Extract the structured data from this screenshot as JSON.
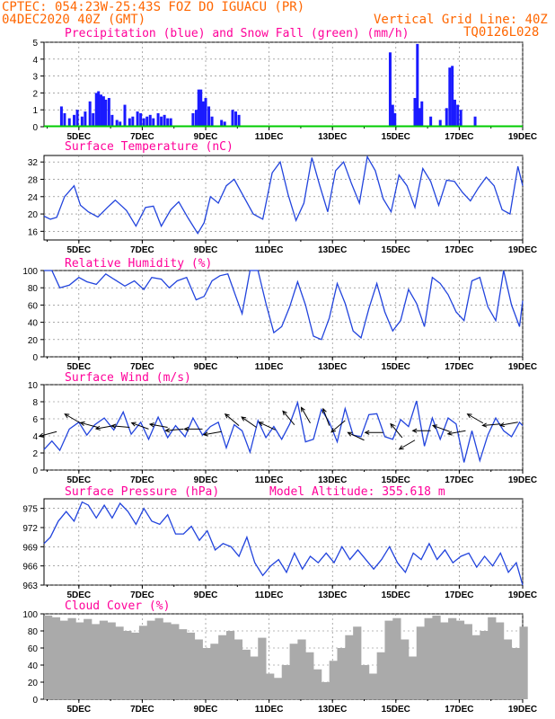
{
  "header": {
    "line1": "CPTEC:  054:23W-25:43S  FOZ DO IGUACU (PR)",
    "line2": "04DEC2020 40Z (GMT)",
    "grid_note": "Vertical Grid Line: 40Z",
    "code": "TQ0126L028"
  },
  "colors": {
    "header": "#ff6600",
    "titles": "#ff0099",
    "precip": "#1a1aff",
    "snow": "#00cc00",
    "line": "#2244dd",
    "wind_arrow": "#000000",
    "cloud": "#aaaaaa"
  },
  "x_axis": {
    "days": [
      "5DEC",
      "7DEC",
      "9DEC",
      "11DEC",
      "13DEC",
      "15DEC",
      "17DEC",
      "19DEC"
    ]
  },
  "chart_data": [
    {
      "type": "bar",
      "title": "Precipitation (blue) and Snow Fall (green) (mm/h)",
      "ylim": [
        0,
        5
      ],
      "yticks": [
        0,
        1,
        2,
        3,
        4,
        5
      ],
      "grid": true,
      "series": [
        {
          "name": "Precipitation",
          "x": [
            4.45,
            4.55,
            4.7,
            4.85,
            4.95,
            5.1,
            5.2,
            5.35,
            5.45,
            5.55,
            5.62,
            5.7,
            5.78,
            5.85,
            5.95,
            6.05,
            6.2,
            6.3,
            6.45,
            6.6,
            6.7,
            6.85,
            6.95,
            7.05,
            7.15,
            7.25,
            7.35,
            7.5,
            7.6,
            7.7,
            7.8,
            7.9,
            8.6,
            8.7,
            8.78,
            8.85,
            8.92,
            9.0,
            9.1,
            9.2,
            9.5,
            9.6,
            9.85,
            9.95,
            10.05,
            14.82,
            14.9,
            14.97,
            15.6,
            15.68,
            15.75,
            15.82,
            16.1,
            16.4,
            16.6,
            16.7,
            16.78,
            16.86,
            16.95,
            17.05,
            17.5
          ],
          "values": [
            1.2,
            0.8,
            0.5,
            0.7,
            1.0,
            0.6,
            0.9,
            1.5,
            0.8,
            2.0,
            2.1,
            1.9,
            1.8,
            1.6,
            1.7,
            0.7,
            0.4,
            0.3,
            1.3,
            0.5,
            0.6,
            0.9,
            0.8,
            0.5,
            0.6,
            0.7,
            0.5,
            0.8,
            0.6,
            0.7,
            0.5,
            0.5,
            0.8,
            1.0,
            2.2,
            2.2,
            1.5,
            1.7,
            1.2,
            0.6,
            0.4,
            0.3,
            1.0,
            0.9,
            0.7,
            4.4,
            1.3,
            0.8,
            1.7,
            4.9,
            1.1,
            1.5,
            0.6,
            0.4,
            1.1,
            3.5,
            3.6,
            1.6,
            1.3,
            1.0,
            0.6
          ]
        },
        {
          "name": "Snow Fall",
          "x": [
            16.8
          ],
          "values": [
            0.0
          ]
        }
      ]
    },
    {
      "type": "line",
      "title": "Surface Temperature (nC)",
      "ylim": [
        14,
        33.5
      ],
      "yticks": [
        16,
        20,
        24,
        28,
        32
      ],
      "grid": true,
      "series": [
        {
          "name": "Temperature",
          "x": [
            3.9,
            4.1,
            4.3,
            4.55,
            4.85,
            5.05,
            5.3,
            5.6,
            5.9,
            6.15,
            6.5,
            6.8,
            7.1,
            7.35,
            7.6,
            7.9,
            8.15,
            8.45,
            8.75,
            8.95,
            9.15,
            9.4,
            9.65,
            9.9,
            10.2,
            10.5,
            10.8,
            11.1,
            11.35,
            11.6,
            11.85,
            12.1,
            12.35,
            12.6,
            12.85,
            13.1,
            13.35,
            13.6,
            13.85,
            14.1,
            14.35,
            14.6,
            14.85,
            15.1,
            15.35,
            15.6,
            15.85,
            16.1,
            16.35,
            16.6,
            16.85,
            17.1,
            17.35,
            17.6,
            17.85,
            18.1,
            18.35,
            18.6,
            18.85,
            19.0
          ],
          "values": [
            19.5,
            18.8,
            19.2,
            24,
            26.5,
            22,
            20.5,
            19.3,
            21.5,
            23.2,
            20.8,
            17.2,
            21.5,
            21.8,
            17.2,
            21,
            22.8,
            19,
            15.5,
            18,
            24,
            22.5,
            26.5,
            28,
            24,
            20,
            18.8,
            29.5,
            32,
            24.5,
            18.5,
            22.5,
            33,
            26.5,
            20.5,
            30,
            32,
            27,
            22.5,
            33.2,
            30,
            23.5,
            20.5,
            29,
            26.5,
            21.5,
            30.5,
            27.5,
            22,
            27.8,
            27.5,
            25,
            23,
            26,
            28.5,
            26.5,
            21,
            20,
            31,
            26.5
          ]
        }
      ]
    },
    {
      "type": "line",
      "title": "Relative Humidity (%)",
      "ylim": [
        0,
        100
      ],
      "yticks": [
        0,
        20,
        40,
        60,
        80,
        100
      ],
      "grid": true,
      "series": [
        {
          "name": "Humidity",
          "x": [
            3.9,
            4.15,
            4.4,
            4.7,
            5.0,
            5.25,
            5.55,
            5.85,
            6.15,
            6.45,
            6.75,
            7.05,
            7.3,
            7.6,
            7.85,
            8.1,
            8.4,
            8.7,
            8.95,
            9.2,
            9.45,
            9.7,
            9.95,
            10.15,
            10.4,
            10.65,
            10.9,
            11.15,
            11.4,
            11.65,
            11.9,
            12.15,
            12.4,
            12.65,
            12.9,
            13.15,
            13.4,
            13.65,
            13.9,
            14.15,
            14.4,
            14.65,
            14.9,
            15.15,
            15.4,
            15.65,
            15.9,
            16.15,
            16.4,
            16.65,
            16.9,
            17.15,
            17.4,
            17.65,
            17.9,
            18.15,
            18.4,
            18.65,
            18.9,
            19.0
          ],
          "values": [
            100,
            100,
            80,
            83,
            92,
            87,
            84,
            96,
            89,
            82,
            88,
            78,
            92,
            90,
            80,
            88,
            92,
            66,
            70,
            88,
            94,
            96,
            70,
            50,
            100,
            100,
            62,
            28,
            35,
            58,
            87,
            60,
            24,
            20,
            45,
            85,
            62,
            30,
            22,
            56,
            85,
            52,
            30,
            42,
            78,
            62,
            35,
            92,
            85,
            72,
            52,
            42,
            88,
            92,
            58,
            42,
            100,
            60,
            35,
            65
          ]
        }
      ]
    },
    {
      "type": "line",
      "title": "Surface Wind (m/s)",
      "ylim": [
        0,
        10
      ],
      "yticks": [
        0,
        2,
        4,
        6,
        8,
        10
      ],
      "grid": true,
      "series": [
        {
          "name": "Wind speed",
          "x": [
            3.9,
            4.15,
            4.4,
            4.7,
            5.0,
            5.25,
            5.5,
            5.8,
            6.1,
            6.4,
            6.65,
            6.95,
            7.2,
            7.5,
            7.8,
            8.05,
            8.35,
            8.6,
            8.9,
            9.15,
            9.4,
            9.65,
            9.9,
            10.15,
            10.4,
            10.65,
            10.9,
            11.15,
            11.4,
            11.65,
            11.9,
            12.15,
            12.4,
            12.65,
            12.9,
            13.15,
            13.4,
            13.65,
            13.9,
            14.15,
            14.4,
            14.65,
            14.9,
            15.15,
            15.4,
            15.65,
            15.9,
            16.15,
            16.4,
            16.65,
            16.9,
            17.15,
            17.4,
            17.65,
            17.9,
            18.15,
            18.4,
            18.65,
            18.9,
            19.0
          ],
          "values": [
            2.4,
            3.4,
            2.3,
            4.8,
            5.6,
            4.1,
            5.3,
            6.1,
            4.7,
            6.8,
            4.2,
            5.6,
            3.6,
            6.2,
            3.8,
            5.2,
            3.9,
            6.1,
            4.1,
            5.1,
            5.6,
            2.6,
            5.3,
            4.6,
            2.1,
            5.8,
            3.8,
            5.1,
            3.6,
            5.4,
            7.9,
            3.3,
            3.6,
            7.1,
            5.6,
            3.3,
            7.2,
            4.1,
            3.9,
            6.5,
            6.6,
            3.9,
            3.6,
            5.9,
            5.1,
            8.1,
            2.8,
            6.1,
            3.6,
            6.1,
            5.4,
            0.9,
            4.6,
            1.1,
            4.1,
            6.1,
            4.6,
            3.9,
            5.6,
            5.2
          ]
        }
      ],
      "arrows": [
        {
          "x": 4.3,
          "y": 4.5,
          "dir": 15
        },
        {
          "x": 5.05,
          "y": 5.5,
          "dir": -30
        },
        {
          "x": 5.6,
          "y": 5.0,
          "dir": -15
        },
        {
          "x": 6.1,
          "y": 5.2,
          "dir": 10
        },
        {
          "x": 6.6,
          "y": 5.0,
          "dir": -5
        },
        {
          "x": 7.2,
          "y": 4.8,
          "dir": -20
        },
        {
          "x": 7.8,
          "y": 5.0,
          "dir": -10
        },
        {
          "x": 8.3,
          "y": 4.8,
          "dir": 5
        },
        {
          "x": 8.9,
          "y": 4.8,
          "dir": 0
        },
        {
          "x": 9.5,
          "y": 4.5,
          "dir": 10
        },
        {
          "x": 10.05,
          "y": 5.2,
          "dir": -40
        },
        {
          "x": 10.6,
          "y": 5.0,
          "dir": -35
        },
        {
          "x": 11.2,
          "y": 4.7,
          "dir": -25
        },
        {
          "x": 11.8,
          "y": 5.3,
          "dir": -50
        },
        {
          "x": 12.3,
          "y": 5.5,
          "dir": -60
        },
        {
          "x": 12.9,
          "y": 5.2,
          "dir": -70
        },
        {
          "x": 13.4,
          "y": 5.8,
          "dir": 40
        },
        {
          "x": 14.0,
          "y": 3.5,
          "dir": -25
        },
        {
          "x": 14.6,
          "y": 4.4,
          "dir": 0
        },
        {
          "x": 15.2,
          "y": 3.8,
          "dir": -50
        },
        {
          "x": 15.6,
          "y": 3.5,
          "dir": 30
        },
        {
          "x": 16.1,
          "y": 4.6,
          "dir": 0
        },
        {
          "x": 16.7,
          "y": 4.5,
          "dir": -20
        },
        {
          "x": 17.2,
          "y": 4.6,
          "dir": 10
        },
        {
          "x": 17.75,
          "y": 5.5,
          "dir": -30
        },
        {
          "x": 18.3,
          "y": 5.4,
          "dir": 5
        },
        {
          "x": 18.85,
          "y": 5.6,
          "dir": 10
        }
      ]
    },
    {
      "type": "line",
      "title": "Surface Pressure (hPa)",
      "annotation": "Model Altitude: 355.618 m",
      "ylim": [
        963,
        976.5
      ],
      "yticks": [
        963,
        966,
        969,
        972,
        975
      ],
      "grid": true,
      "series": [
        {
          "name": "Pressure",
          "x": [
            3.9,
            4.1,
            4.35,
            4.6,
            4.85,
            5.1,
            5.3,
            5.55,
            5.8,
            6.05,
            6.3,
            6.55,
            6.8,
            7.05,
            7.3,
            7.55,
            7.8,
            8.05,
            8.3,
            8.55,
            8.8,
            9.05,
            9.3,
            9.55,
            9.8,
            10.05,
            10.3,
            10.55,
            10.8,
            11.05,
            11.3,
            11.55,
            11.8,
            12.05,
            12.3,
            12.55,
            12.8,
            13.05,
            13.3,
            13.55,
            13.8,
            14.05,
            14.3,
            14.55,
            14.8,
            15.05,
            15.3,
            15.55,
            15.8,
            16.05,
            16.3,
            16.55,
            16.8,
            17.05,
            17.3,
            17.55,
            17.8,
            18.05,
            18.3,
            18.55,
            18.8,
            19.0
          ],
          "values": [
            969.5,
            970.5,
            973,
            974.5,
            973,
            976,
            975.5,
            973.5,
            975.5,
            973.5,
            975.8,
            974.5,
            972.5,
            975,
            973,
            972.5,
            974,
            971,
            971,
            972.2,
            970,
            971.5,
            968.5,
            969.5,
            969,
            967.5,
            970.5,
            966.5,
            964.5,
            966,
            967,
            965,
            968,
            965.5,
            967.5,
            966.5,
            968,
            966.5,
            969,
            967,
            968.5,
            967,
            965.5,
            967,
            969,
            966.5,
            965,
            968,
            967,
            969.5,
            967,
            968.5,
            966.5,
            967.5,
            968,
            965.8,
            967.5,
            966,
            968,
            965,
            966.5,
            963
          ]
        }
      ]
    },
    {
      "type": "bar",
      "title": "Cloud Cover (%)",
      "ylim": [
        0,
        100
      ],
      "yticks": [
        0,
        20,
        40,
        60,
        80,
        100
      ],
      "grid": true,
      "series": [
        {
          "name": "Cloud cover",
          "x": [
            3.9,
            4.15,
            4.4,
            4.65,
            4.9,
            5.15,
            5.4,
            5.65,
            5.9,
            6.15,
            6.4,
            6.65,
            6.9,
            7.15,
            7.4,
            7.65,
            7.9,
            8.15,
            8.4,
            8.65,
            8.9,
            9.15,
            9.4,
            9.65,
            9.9,
            10.15,
            10.4,
            10.65,
            10.9,
            11.15,
            11.4,
            11.65,
            11.9,
            12.15,
            12.4,
            12.65,
            12.9,
            13.15,
            13.4,
            13.65,
            13.9,
            14.15,
            14.4,
            14.65,
            14.9,
            15.15,
            15.4,
            15.65,
            15.9,
            16.15,
            16.4,
            16.65,
            16.9,
            17.15,
            17.4,
            17.65,
            17.9,
            18.15,
            18.4,
            18.65,
            18.9
          ],
          "values": [
            98,
            96,
            92,
            95,
            90,
            94,
            88,
            92,
            90,
            85,
            80,
            78,
            86,
            92,
            95,
            90,
            88,
            82,
            78,
            70,
            60,
            65,
            75,
            80,
            70,
            58,
            50,
            72,
            30,
            25,
            40,
            65,
            70,
            55,
            35,
            20,
            45,
            60,
            75,
            85,
            40,
            30,
            55,
            92,
            95,
            70,
            50,
            85,
            95,
            98,
            90,
            95,
            92,
            88,
            75,
            80,
            96,
            90,
            70,
            60,
            85
          ]
        }
      ]
    }
  ]
}
